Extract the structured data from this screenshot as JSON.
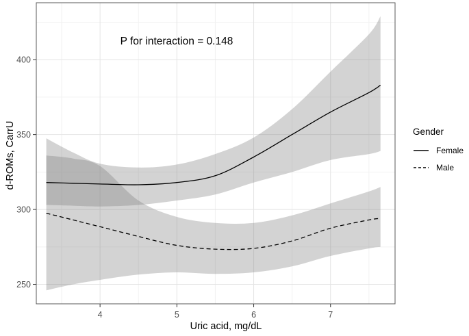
{
  "chart_data": {
    "type": "line",
    "title": "",
    "annotation": "P for interaction = 0.148",
    "xlabel": "Uric acid, mg/dL",
    "ylabel": "d-ROMs, CarrU",
    "xlim": [
      3.17,
      7.84
    ],
    "ylim": [
      237,
      438
    ],
    "x_ticks": [
      4,
      5,
      6,
      7
    ],
    "x_minor_ticks": [
      3.5,
      4.5,
      5.5,
      6.5,
      7.5
    ],
    "y_ticks": [
      250,
      300,
      350,
      400
    ],
    "y_minor_ticks": [
      275,
      325,
      375,
      425
    ],
    "grid": "major+minor",
    "legend": {
      "title": "Gender",
      "position": "right",
      "items": [
        {
          "label": "Female",
          "linetype": "solid"
        },
        {
          "label": "Male",
          "linetype": "dashed"
        }
      ]
    },
    "x": [
      3.3,
      3.65,
      4,
      4.5,
      5,
      5.5,
      6,
      6.5,
      7,
      7.5,
      7.65
    ],
    "series": [
      {
        "name": "Female",
        "linetype": "solid",
        "y": [
          318,
          317.5,
          317,
          316.5,
          318,
          322.5,
          335,
          350,
          365,
          378,
          383
        ],
        "ci_upper": [
          347.5,
          338,
          330.5,
          328,
          330,
          337,
          348,
          367,
          392,
          417,
          429
        ],
        "ci_lower": [
          303,
          302.5,
          302,
          303,
          306,
          310,
          318,
          325,
          333,
          337,
          339
        ]
      },
      {
        "name": "Male",
        "linetype": "dashed",
        "y": [
          297.5,
          293,
          288.5,
          282,
          276,
          273.5,
          274,
          279,
          287.5,
          293,
          294
        ],
        "ci_upper": [
          336,
          334,
          329,
          306,
          295,
          291,
          291,
          296,
          304,
          312,
          315
        ],
        "ci_lower": [
          246,
          250,
          253,
          256.5,
          258,
          257,
          258,
          262,
          269,
          274,
          275
        ]
      }
    ],
    "colors": {
      "line": "#000000",
      "ci_fill_rgb": "120,120,120",
      "ci_fill_alpha": "0.33",
      "grid_major": "#e4e4e4",
      "grid_minor": "#f2f2f2",
      "panel_border": "#595959",
      "tick_mark": "#333333",
      "tick_text": "#4d4d4d",
      "background": "#ffffff"
    }
  }
}
